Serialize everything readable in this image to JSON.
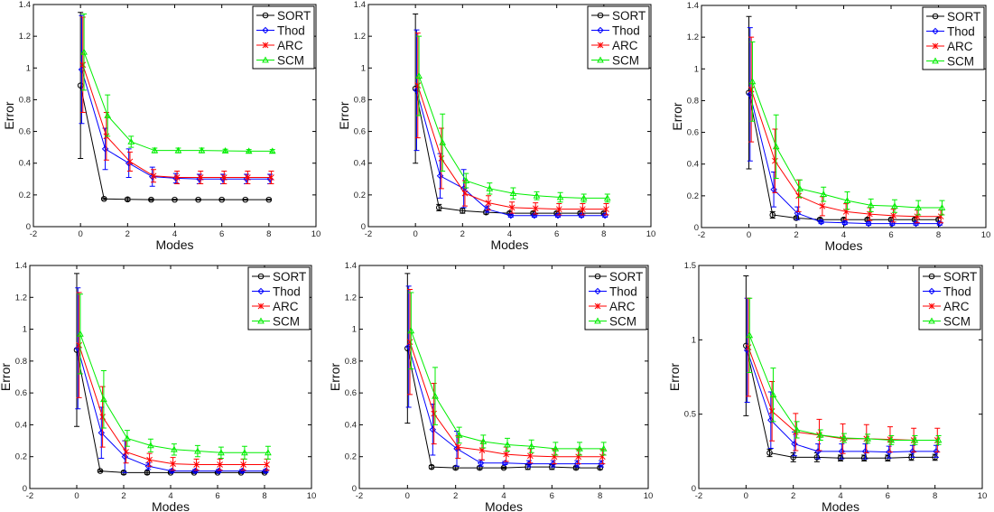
{
  "chart_data": [
    {
      "type": "line",
      "xlabel": "Modes",
      "ylabel": "Error",
      "xlim": [
        -2,
        10
      ],
      "ylim": [
        0,
        1.4
      ],
      "xticks": [
        "-2",
        "0",
        "2",
        "4",
        "6",
        "8",
        "10"
      ],
      "yticks": [
        "0",
        "0.2",
        "0.4",
        "0.6",
        "0.8",
        "1",
        "1.2",
        "1.4"
      ],
      "legend": "top-right",
      "grid": false,
      "error_bars": true,
      "x": [
        0,
        1,
        2,
        3,
        4,
        5,
        6,
        7,
        8
      ],
      "series": [
        {
          "name": "SORT",
          "color": "#000000",
          "marker": "circle",
          "values": [
            0.89,
            0.175,
            0.172,
            0.17,
            0.17,
            0.17,
            0.17,
            0.17,
            0.17
          ],
          "err": [
            0.46,
            0.005,
            0.01,
            0.005,
            0.003,
            0.003,
            0.003,
            0.003,
            0.003
          ]
        },
        {
          "name": "Thod",
          "color": "#0000ff",
          "marker": "diamond",
          "values": [
            0.99,
            0.49,
            0.4,
            0.315,
            0.305,
            0.3,
            0.3,
            0.3,
            0.3
          ],
          "err": [
            0.34,
            0.13,
            0.09,
            0.06,
            0.03,
            0.03,
            0.03,
            0.03,
            0.03
          ]
        },
        {
          "name": "ARC",
          "color": "#ff0000",
          "marker": "star",
          "values": [
            1.02,
            0.57,
            0.41,
            0.32,
            0.31,
            0.31,
            0.31,
            0.31,
            0.31
          ],
          "err": [
            0.3,
            0.15,
            0.06,
            0.04,
            0.04,
            0.04,
            0.04,
            0.04,
            0.04
          ]
        },
        {
          "name": "SCM",
          "color": "#00ee00",
          "marker": "triangle",
          "values": [
            1.1,
            0.7,
            0.535,
            0.48,
            0.48,
            0.48,
            0.478,
            0.476,
            0.476
          ],
          "err": [
            0.24,
            0.13,
            0.035,
            0.015,
            0.015,
            0.015,
            0.01,
            0.01,
            0.01
          ]
        }
      ]
    },
    {
      "type": "line",
      "xlabel": "Modes",
      "ylabel": "Error",
      "xlim": [
        -2,
        10
      ],
      "ylim": [
        0,
        1.4
      ],
      "xticks": [
        "-2",
        "0",
        "2",
        "4",
        "6",
        "8",
        "10"
      ],
      "yticks": [
        "0",
        "0.2",
        "0.4",
        "0.6",
        "0.8",
        "1",
        "1.2",
        "1.4"
      ],
      "legend": "top-right",
      "grid": false,
      "error_bars": true,
      "x": [
        0,
        1,
        2,
        3,
        4,
        5,
        6,
        7,
        8
      ],
      "series": [
        {
          "name": "SORT",
          "color": "#000000",
          "marker": "circle",
          "values": [
            0.87,
            0.12,
            0.1,
            0.09,
            0.085,
            0.085,
            0.085,
            0.085,
            0.085
          ],
          "err": [
            0.47,
            0.02,
            0.015,
            0.01,
            0.01,
            0.01,
            0.01,
            0.01,
            0.01
          ]
        },
        {
          "name": "Thod",
          "color": "#0000ff",
          "marker": "diamond",
          "values": [
            0.86,
            0.32,
            0.24,
            0.11,
            0.07,
            0.07,
            0.07,
            0.07,
            0.07
          ],
          "err": [
            0.38,
            0.14,
            0.12,
            0.02,
            0.01,
            0.01,
            0.01,
            0.01,
            0.01
          ]
        },
        {
          "name": "ARC",
          "color": "#ff0000",
          "marker": "star",
          "values": [
            0.89,
            0.43,
            0.21,
            0.15,
            0.12,
            0.115,
            0.11,
            0.11,
            0.11
          ],
          "err": [
            0.33,
            0.19,
            0.08,
            0.045,
            0.035,
            0.035,
            0.035,
            0.035,
            0.035
          ]
        },
        {
          "name": "SCM",
          "color": "#00ee00",
          "marker": "triangle",
          "values": [
            0.95,
            0.53,
            0.29,
            0.24,
            0.21,
            0.195,
            0.185,
            0.18,
            0.18
          ],
          "err": [
            0.25,
            0.18,
            0.045,
            0.035,
            0.035,
            0.025,
            0.03,
            0.025,
            0.025
          ]
        }
      ]
    },
    {
      "type": "line",
      "xlabel": "Modes",
      "ylabel": "Error",
      "xlim": [
        -2,
        10
      ],
      "ylim": [
        0,
        1.4
      ],
      "xticks": [
        "-2",
        "0",
        "2",
        "4",
        "6",
        "8",
        "10"
      ],
      "yticks": [
        "0",
        "0.2",
        "0.4",
        "0.6",
        "0.8",
        "1",
        "1.2",
        "1.4"
      ],
      "legend": "top-right",
      "grid": false,
      "error_bars": true,
      "x": [
        0,
        1,
        2,
        3,
        4,
        5,
        6,
        7,
        8
      ],
      "series": [
        {
          "name": "SORT",
          "color": "#000000",
          "marker": "circle",
          "values": [
            0.85,
            0.08,
            0.06,
            0.05,
            0.05,
            0.05,
            0.05,
            0.05,
            0.05
          ],
          "err": [
            0.48,
            0.02,
            0.01,
            0.01,
            0.01,
            0.01,
            0.01,
            0.01,
            0.01
          ]
        },
        {
          "name": "Thod",
          "color": "#0000ff",
          "marker": "diamond",
          "values": [
            0.84,
            0.24,
            0.09,
            0.035,
            0.03,
            0.025,
            0.025,
            0.025,
            0.025
          ],
          "err": [
            0.42,
            0.11,
            0.04,
            0.01,
            0.01,
            0.01,
            0.01,
            0.01,
            0.01
          ]
        },
        {
          "name": "ARC",
          "color": "#ff0000",
          "marker": "star",
          "values": [
            0.87,
            0.42,
            0.2,
            0.135,
            0.1,
            0.085,
            0.075,
            0.07,
            0.07
          ],
          "err": [
            0.33,
            0.2,
            0.1,
            0.06,
            0.05,
            0.04,
            0.04,
            0.04,
            0.04
          ]
        },
        {
          "name": "SCM",
          "color": "#00ee00",
          "marker": "triangle",
          "values": [
            0.92,
            0.51,
            0.245,
            0.21,
            0.17,
            0.14,
            0.135,
            0.125,
            0.125
          ],
          "err": [
            0.25,
            0.2,
            0.055,
            0.045,
            0.055,
            0.04,
            0.04,
            0.045,
            0.045
          ]
        }
      ]
    },
    {
      "type": "line",
      "xlabel": "Modes",
      "ylabel": "Error",
      "xlim": [
        -2,
        10
      ],
      "ylim": [
        0,
        1.4
      ],
      "xticks": [
        "-2",
        "0",
        "2",
        "4",
        "6",
        "8",
        "10"
      ],
      "yticks": [
        "0",
        "0.2",
        "0.4",
        "0.6",
        "0.8",
        "1",
        "1.2",
        "1.4"
      ],
      "legend": "top-right",
      "grid": false,
      "error_bars": true,
      "x": [
        0,
        1,
        2,
        3,
        4,
        5,
        6,
        7,
        8
      ],
      "series": [
        {
          "name": "SORT",
          "color": "#000000",
          "marker": "circle",
          "values": [
            0.87,
            0.11,
            0.1,
            0.1,
            0.1,
            0.1,
            0.1,
            0.1,
            0.1
          ],
          "err": [
            0.48,
            0.005,
            0.01,
            0.01,
            0.005,
            0.005,
            0.005,
            0.005,
            0.005
          ]
        },
        {
          "name": "Thod",
          "color": "#0000ff",
          "marker": "diamond",
          "values": [
            0.88,
            0.35,
            0.2,
            0.14,
            0.11,
            0.11,
            0.11,
            0.11,
            0.11
          ],
          "err": [
            0.38,
            0.16,
            0.1,
            0.02,
            0.01,
            0.01,
            0.01,
            0.01,
            0.01
          ]
        },
        {
          "name": "ARC",
          "color": "#ff0000",
          "marker": "star",
          "values": [
            0.9,
            0.45,
            0.23,
            0.18,
            0.155,
            0.15,
            0.15,
            0.15,
            0.15
          ],
          "err": [
            0.33,
            0.19,
            0.07,
            0.04,
            0.04,
            0.035,
            0.035,
            0.035,
            0.035
          ]
        },
        {
          "name": "SCM",
          "color": "#00ee00",
          "marker": "triangle",
          "values": [
            0.97,
            0.56,
            0.315,
            0.27,
            0.245,
            0.235,
            0.225,
            0.225,
            0.225
          ],
          "err": [
            0.25,
            0.18,
            0.05,
            0.04,
            0.035,
            0.035,
            0.035,
            0.04,
            0.04
          ]
        }
      ]
    },
    {
      "type": "line",
      "xlabel": "Modes",
      "ylabel": "Error",
      "xlim": [
        -2,
        10
      ],
      "ylim": [
        0,
        1.4
      ],
      "xticks": [
        "-2",
        "0",
        "2",
        "4",
        "6",
        "8",
        "10"
      ],
      "yticks": [
        "0",
        "0.2",
        "0.4",
        "0.6",
        "0.8",
        "1",
        "1.2",
        "1.4"
      ],
      "legend": "top-right",
      "grid": false,
      "error_bars": true,
      "x": [
        0,
        1,
        2,
        3,
        4,
        5,
        6,
        7,
        8
      ],
      "series": [
        {
          "name": "SORT",
          "color": "#000000",
          "marker": "circle",
          "values": [
            0.88,
            0.135,
            0.13,
            0.13,
            0.13,
            0.135,
            0.135,
            0.13,
            0.13
          ],
          "err": [
            0.47,
            0.01,
            0.01,
            0.01,
            0.005,
            0.015,
            0.015,
            0.01,
            0.01
          ]
        },
        {
          "name": "Thod",
          "color": "#0000ff",
          "marker": "diamond",
          "values": [
            0.89,
            0.37,
            0.25,
            0.16,
            0.16,
            0.155,
            0.155,
            0.155,
            0.155
          ],
          "err": [
            0.38,
            0.16,
            0.11,
            0.02,
            0.01,
            0.02,
            0.02,
            0.02,
            0.02
          ]
        },
        {
          "name": "ARC",
          "color": "#ff0000",
          "marker": "star",
          "values": [
            0.92,
            0.47,
            0.26,
            0.24,
            0.215,
            0.205,
            0.2,
            0.2,
            0.2
          ],
          "err": [
            0.33,
            0.19,
            0.07,
            0.06,
            0.045,
            0.045,
            0.045,
            0.045,
            0.045
          ]
        },
        {
          "name": "SCM",
          "color": "#00ee00",
          "marker": "triangle",
          "values": [
            0.99,
            0.58,
            0.335,
            0.295,
            0.275,
            0.265,
            0.25,
            0.25,
            0.25
          ],
          "err": [
            0.24,
            0.18,
            0.05,
            0.04,
            0.04,
            0.04,
            0.04,
            0.04,
            0.04
          ]
        }
      ]
    },
    {
      "type": "line",
      "xlabel": "Modes",
      "ylabel": "Error",
      "xlim": [
        -2,
        10
      ],
      "ylim": [
        0,
        1.5
      ],
      "xticks": [
        "-2",
        "0",
        "2",
        "4",
        "6",
        "8",
        "10"
      ],
      "yticks": [
        "0",
        "0.5",
        "1",
        "1.5"
      ],
      "legend": "top-right",
      "grid": false,
      "error_bars": true,
      "x": [
        0,
        1,
        2,
        3,
        4,
        5,
        6,
        7,
        8
      ],
      "series": [
        {
          "name": "SORT",
          "color": "#000000",
          "marker": "circle",
          "values": [
            0.96,
            0.24,
            0.21,
            0.21,
            0.205,
            0.205,
            0.205,
            0.21,
            0.21
          ],
          "err": [
            0.47,
            0.025,
            0.03,
            0.03,
            0.02,
            0.02,
            0.02,
            0.02,
            0.02
          ]
        },
        {
          "name": "Thod",
          "color": "#0000ff",
          "marker": "diamond",
          "values": [
            0.93,
            0.46,
            0.3,
            0.25,
            0.25,
            0.25,
            0.245,
            0.25,
            0.25
          ],
          "err": [
            0.35,
            0.19,
            0.08,
            0.05,
            0.05,
            0.05,
            0.04,
            0.04,
            0.04
          ]
        },
        {
          "name": "ARC",
          "color": "#ff0000",
          "marker": "star",
          "values": [
            0.95,
            0.52,
            0.38,
            0.36,
            0.335,
            0.335,
            0.33,
            0.325,
            0.325
          ],
          "err": [
            0.33,
            0.2,
            0.125,
            0.105,
            0.1,
            0.095,
            0.085,
            0.08,
            0.08
          ]
        },
        {
          "name": "SCM",
          "color": "#00ee00",
          "marker": "triangle",
          "values": [
            1.03,
            0.63,
            0.395,
            0.36,
            0.34,
            0.335,
            0.325,
            0.325,
            0.325
          ],
          "err": [
            0.25,
            0.18,
            0.055,
            0.035,
            0.03,
            0.03,
            0.03,
            0.03,
            0.03
          ]
        }
      ]
    }
  ]
}
